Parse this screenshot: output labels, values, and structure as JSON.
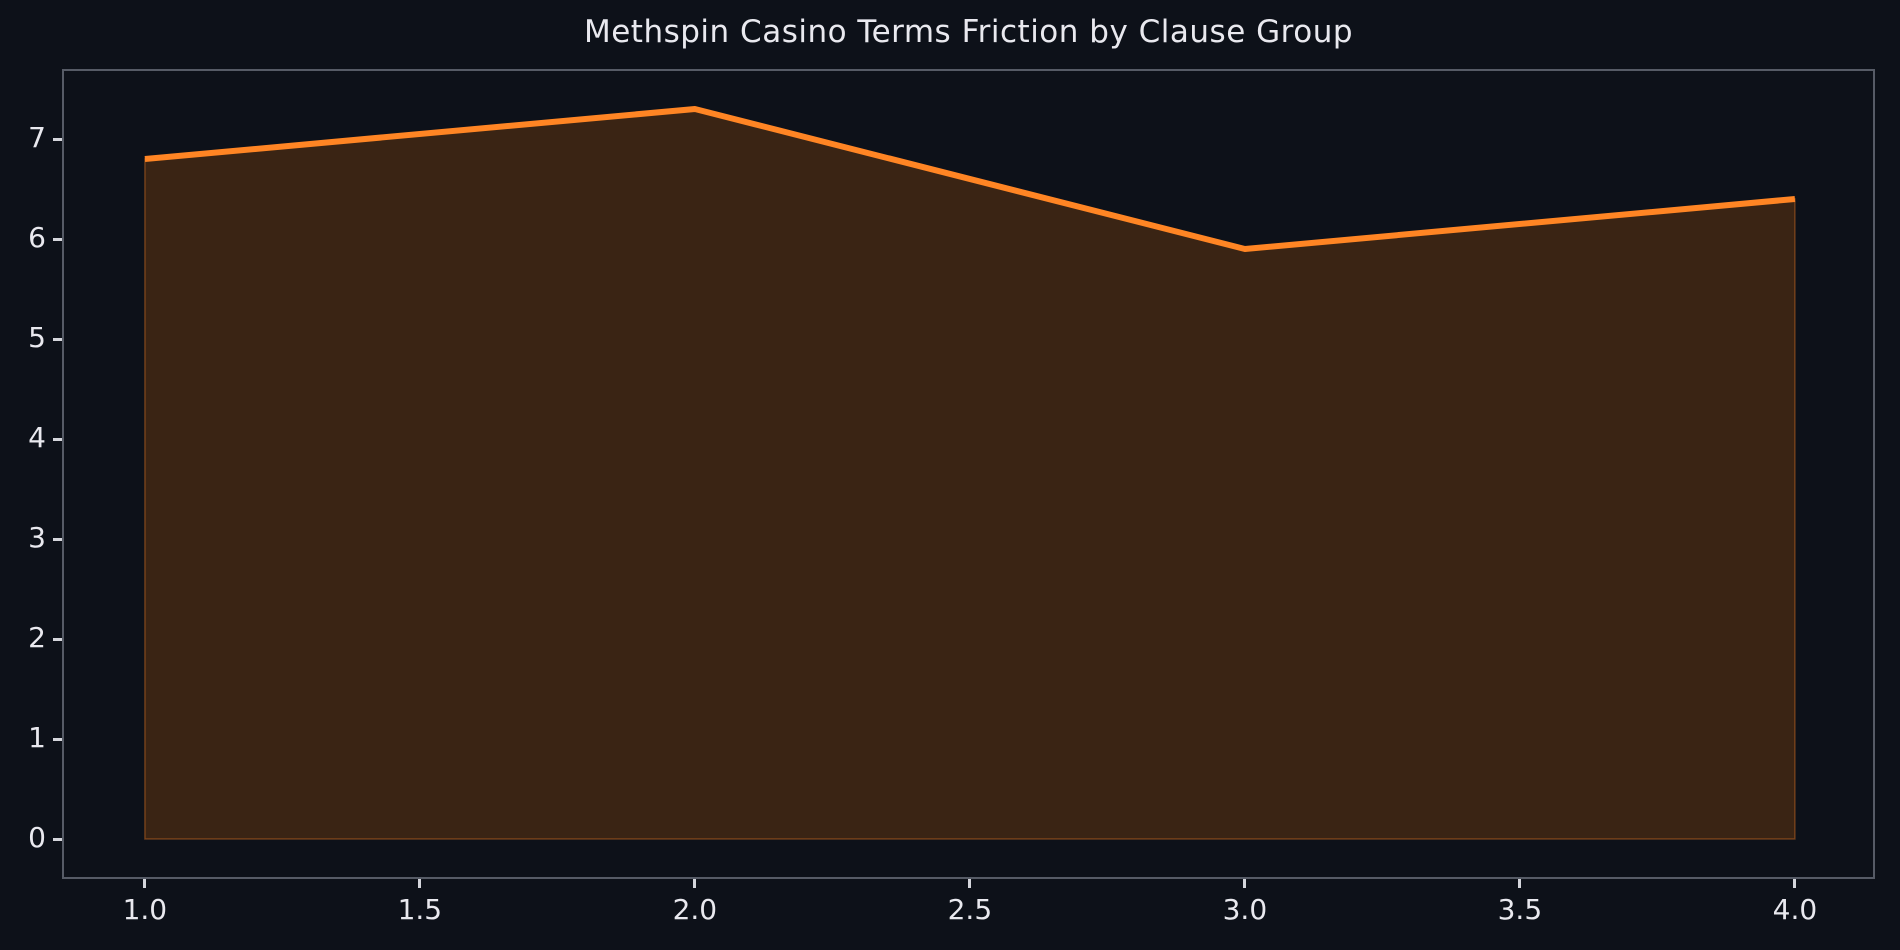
{
  "title": "Methspin Casino Terms Friction by Clause Group",
  "colors": {
    "background": "#0d1119",
    "line": "#ff8524",
    "fill": "#3a2414",
    "fill_edge": "rgba(255,133,36,0.35)",
    "spine": "#565b66",
    "tick_mark": "#d4d6dc",
    "text": "#e9e9ef"
  },
  "chart_data": {
    "type": "area",
    "title": "Methspin Casino Terms Friction by Clause Group",
    "x": [
      1,
      2,
      3,
      4
    ],
    "y": [
      6.8,
      7.3,
      5.9,
      6.4
    ],
    "baseline": 0,
    "xlabel": "",
    "ylabel": "",
    "xlim": [
      0.853,
      4.142
    ],
    "ylim": [
      -0.38,
      7.68
    ],
    "grid": false,
    "legend": null,
    "x_ticks": {
      "values": [
        1.0,
        1.5,
        2.0,
        2.5,
        3.0,
        3.5,
        4.0
      ],
      "labels": [
        "1.0",
        "1.5",
        "2.0",
        "2.5",
        "3.0",
        "3.5",
        "4.0"
      ]
    },
    "y_ticks": {
      "values": [
        0,
        1,
        2,
        3,
        4,
        5,
        6,
        7
      ],
      "labels": [
        "0",
        "1",
        "2",
        "3",
        "4",
        "5",
        "6",
        "7"
      ]
    }
  }
}
